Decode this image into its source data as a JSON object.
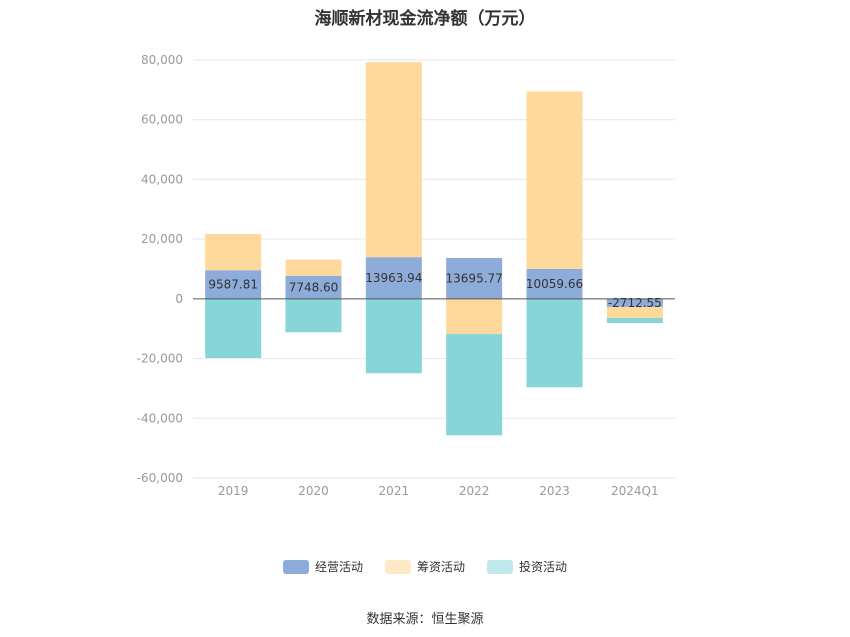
{
  "chart_data": {
    "type": "bar",
    "stacked": true,
    "title": "海顺新材现金流净额（万元）",
    "source": "数据来源：恒生聚源",
    "categories": [
      "2019",
      "2020",
      "2021",
      "2022",
      "2023",
      "2024Q1"
    ],
    "ylim": [
      -60000,
      80000
    ],
    "yticks": [
      80000,
      60000,
      40000,
      20000,
      0,
      -20000,
      -40000,
      -60000
    ],
    "ytick_labels": [
      "80,000",
      "60,000",
      "40,000",
      "20,000",
      "0",
      "-20,000",
      "-40,000",
      "-60,000"
    ],
    "grid": true,
    "legend_position": "bottom",
    "series": [
      {
        "name": "经营活动",
        "color": "#8eacd9",
        "values": [
          9587.81,
          7748.6,
          13963.94,
          13695.77,
          10059.66,
          -2712.55
        ],
        "labels": [
          "9587.81",
          "7748.60",
          "13963.94",
          "13695.77",
          "10059.66",
          "-2712.55"
        ]
      },
      {
        "name": "筹资活动",
        "color": "#fed99b",
        "values": [
          12100,
          5400,
          65300,
          -11800,
          59400,
          -3700
        ]
      },
      {
        "name": "投资活动",
        "color": "#86d5d8",
        "values": [
          -19800,
          -11200,
          -24900,
          -33900,
          -29600,
          -1700
        ]
      }
    ]
  }
}
